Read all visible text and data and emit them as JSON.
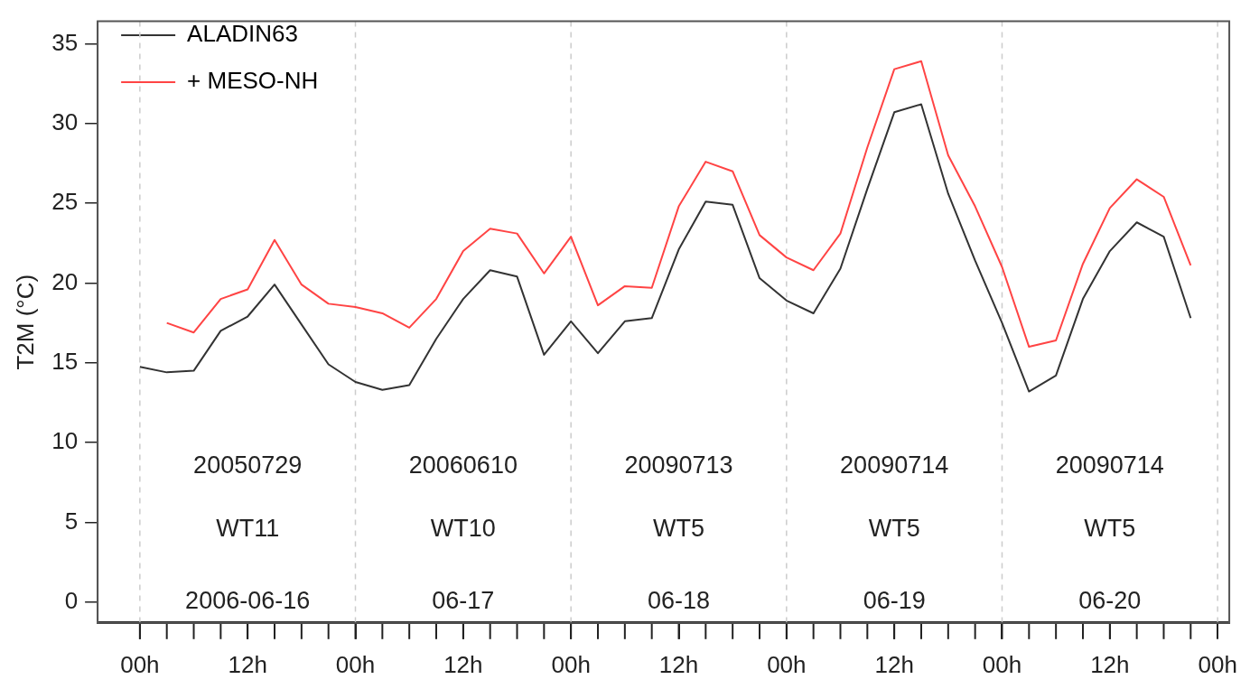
{
  "chart_data": {
    "type": "line",
    "ylabel": "T2M (°C)",
    "x": [
      "2006-06-16T00:00",
      "2006-06-16T03:00",
      "2006-06-16T06:00",
      "2006-06-16T09:00",
      "2006-06-16T12:00",
      "2006-06-16T15:00",
      "2006-06-16T18:00",
      "2006-06-16T21:00",
      "2006-06-17T00:00",
      "2006-06-17T03:00",
      "2006-06-17T06:00",
      "2006-06-17T09:00",
      "2006-06-17T12:00",
      "2006-06-17T15:00",
      "2006-06-17T18:00",
      "2006-06-17T21:00",
      "2006-06-18T00:00",
      "2006-06-18T03:00",
      "2006-06-18T06:00",
      "2006-06-18T09:00",
      "2006-06-18T12:00",
      "2006-06-18T15:00",
      "2006-06-18T18:00",
      "2006-06-18T21:00",
      "2006-06-19T00:00",
      "2006-06-19T03:00",
      "2006-06-19T06:00",
      "2006-06-19T09:00",
      "2006-06-19T12:00",
      "2006-06-19T15:00",
      "2006-06-19T18:00",
      "2006-06-19T21:00",
      "2006-06-20T00:00",
      "2006-06-20T03:00",
      "2006-06-20T06:00",
      "2006-06-20T09:00",
      "2006-06-20T12:00",
      "2006-06-20T15:00",
      "2006-06-20T18:00",
      "2006-06-20T21:00"
    ],
    "series": [
      {
        "name": "ALADIN63",
        "color": "#333333",
        "values": [
          14.75,
          14.4,
          14.5,
          17.0,
          17.9,
          19.9,
          17.4,
          14.9,
          13.8,
          13.3,
          13.6,
          16.5,
          19.0,
          20.8,
          20.4,
          15.5,
          17.6,
          15.6,
          17.6,
          17.8,
          22.1,
          25.1,
          24.9,
          20.3,
          18.9,
          18.1,
          20.9,
          25.9,
          30.7,
          31.2,
          25.6,
          21.4,
          17.5,
          13.2,
          14.2,
          19.0,
          22.0,
          23.8,
          22.9,
          17.8
        ]
      },
      {
        "name": "+ MESO-NH",
        "color": "#ff4444",
        "values": [
          null,
          17.5,
          16.9,
          19.0,
          19.6,
          22.7,
          19.9,
          18.7,
          18.5,
          18.1,
          17.2,
          19.0,
          22.0,
          23.4,
          23.1,
          20.6,
          22.9,
          18.6,
          19.8,
          19.7,
          24.8,
          27.6,
          27.0,
          23.0,
          21.6,
          20.8,
          23.1,
          28.5,
          33.4,
          33.9,
          28.0,
          24.8,
          21.0,
          16.0,
          16.4,
          21.2,
          24.7,
          26.5,
          25.4,
          21.1
        ]
      }
    ],
    "xlim": [
      "2006-06-15T19:18",
      "2006-06-21T01:18"
    ],
    "ylim": [
      -1.3,
      36.4
    ],
    "xticks": [
      {
        "value": "2006-06-16T00:00",
        "label": "00h"
      },
      {
        "value": "2006-06-16T12:00",
        "label": "12h"
      },
      {
        "value": "2006-06-17T00:00",
        "label": "00h"
      },
      {
        "value": "2006-06-17T12:00",
        "label": "12h"
      },
      {
        "value": "2006-06-18T00:00",
        "label": "00h"
      },
      {
        "value": "2006-06-18T12:00",
        "label": "12h"
      },
      {
        "value": "2006-06-19T00:00",
        "label": "00h"
      },
      {
        "value": "2006-06-19T12:00",
        "label": "12h"
      },
      {
        "value": "2006-06-20T00:00",
        "label": "00h"
      },
      {
        "value": "2006-06-20T12:00",
        "label": "12h"
      },
      {
        "value": "2006-06-21T00:00",
        "label": "00h"
      }
    ],
    "yticks": [
      0,
      5,
      10,
      15,
      20,
      25,
      30,
      35
    ],
    "grid": false,
    "legend": "top left",
    "marker": "none",
    "line_style": "solid",
    "ref_lines": [
      {
        "axis": "x",
        "value": "2006-06-16T00:00",
        "line_style": "dashed",
        "color": "#cccccc"
      },
      {
        "axis": "x",
        "value": "2006-06-17T00:00",
        "line_style": "dashed",
        "color": "#cccccc"
      },
      {
        "axis": "x",
        "value": "2006-06-18T00:00",
        "line_style": "dashed",
        "color": "#cccccc"
      },
      {
        "axis": "x",
        "value": "2006-06-19T00:00",
        "line_style": "dashed",
        "color": "#cccccc"
      },
      {
        "axis": "x",
        "value": "2006-06-20T00:00",
        "line_style": "dashed",
        "color": "#cccccc"
      },
      {
        "axis": "x",
        "value": "2006-06-21T00:00",
        "line_style": "dashed",
        "color": "#cccccc"
      }
    ],
    "annotations": [
      "20050729",
      "20060610",
      "20090713",
      "20090714",
      "20090714",
      "WT11",
      "WT10",
      "WT5",
      "WT5",
      "WT5",
      "2006-06-16",
      "06-17",
      "06-18",
      "06-19",
      "06-20"
    ]
  }
}
